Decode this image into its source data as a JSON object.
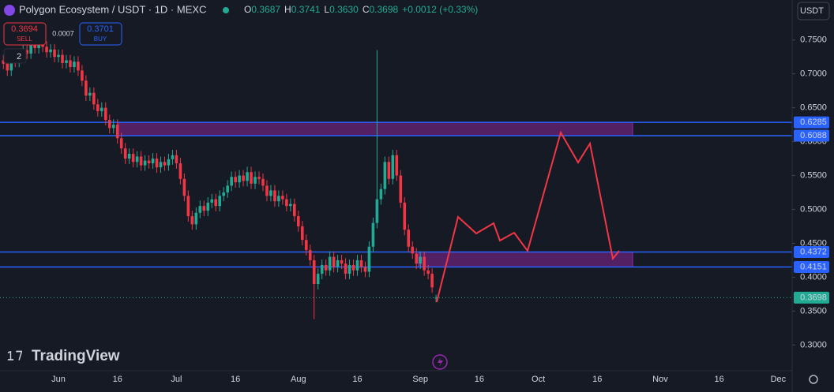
{
  "chart_data": {
    "type": "candlestick",
    "title": "Polygon Ecosystem / USDT · 1D · MEXC",
    "legend": {
      "o_label": "O",
      "o": "0.3687",
      "h_label": "H",
      "h": "0.3741",
      "l_label": "L",
      "l": "0.3630",
      "c_label": "C",
      "c": "0.3698",
      "change": "+0.0012 (+0.33%)"
    },
    "trade_panel": {
      "sell_price": "0.3694",
      "sell": "SELL",
      "spread": "0.0007",
      "buy_price": "0.3701",
      "buy": "BUY",
      "collapse_count": "2"
    },
    "currency": "USDT",
    "brand": "TradingView",
    "up_color": "#22ab94",
    "down_color": "#f23645",
    "ylim": [
      0.262,
      0.809
    ],
    "yticks": [
      {
        "value": 0.75,
        "label": "0.7500"
      },
      {
        "value": 0.7,
        "label": "0.7000"
      },
      {
        "value": 0.65,
        "label": "0.6500"
      },
      {
        "value": 0.6,
        "label": "0.6000"
      },
      {
        "value": 0.55,
        "label": "0.5500"
      },
      {
        "value": 0.5,
        "label": "0.5000"
      },
      {
        "value": 0.45,
        "label": "0.4500"
      },
      {
        "value": 0.4,
        "label": "0.4000"
      },
      {
        "value": 0.35,
        "label": "0.3500"
      },
      {
        "value": 0.3,
        "label": "0.3000"
      }
    ],
    "hlines": [
      0.6285,
      0.6088,
      0.4372,
      0.4151
    ],
    "categories": [
      null,
      null,
      null,
      null,
      null,
      null,
      null,
      null,
      null,
      null,
      null,
      null,
      null,
      null,
      "Jun",
      null,
      null,
      null,
      null,
      null,
      null,
      null,
      null,
      null,
      null,
      null,
      null,
      null,
      null,
      "16",
      null,
      null,
      null,
      null,
      null,
      null,
      null,
      null,
      null,
      null,
      null,
      null,
      null,
      null,
      "Jul",
      null,
      null,
      null,
      null,
      null,
      null,
      null,
      null,
      null,
      null,
      null,
      null,
      null,
      null,
      "16",
      null,
      null,
      null,
      null,
      null,
      null,
      null,
      null,
      null,
      null,
      null,
      null,
      null,
      null,
      null,
      "Aug",
      null,
      null,
      null,
      null,
      null,
      null,
      null,
      null,
      null,
      null,
      null,
      null,
      null,
      null,
      "16",
      null,
      null,
      null,
      null,
      null,
      null,
      null,
      null,
      null,
      null,
      null,
      null,
      null,
      null,
      null,
      "Sep",
      null,
      null,
      null,
      null,
      null,
      null,
      null,
      null,
      null,
      null,
      null,
      null,
      null,
      null,
      "16",
      null,
      null,
      null,
      null,
      null,
      null,
      null,
      null,
      null,
      null,
      null,
      null,
      null,
      null,
      "Oct",
      null,
      null,
      null,
      null,
      null,
      null,
      null,
      null,
      null,
      null,
      null,
      null,
      null,
      null,
      "16",
      null,
      null,
      null,
      null,
      null,
      null,
      null,
      null,
      null,
      null,
      null,
      null,
      null,
      null,
      null,
      "Nov",
      null,
      null,
      null,
      null,
      null,
      null,
      null,
      null,
      null,
      null,
      null,
      null,
      null,
      null,
      "16",
      null,
      null,
      null,
      null,
      null,
      null,
      null,
      null,
      null,
      null,
      null,
      null,
      null,
      null,
      "Dec",
      null,
      null,
      null
    ],
    "open": [
      0.72,
      0.715,
      0.705,
      0.722,
      0.718,
      0.728,
      0.735,
      0.73,
      0.742,
      0.738,
      0.745,
      0.74,
      0.732,
      0.736,
      0.725,
      0.728,
      0.716,
      0.72,
      0.71,
      0.718,
      0.705,
      0.69,
      0.668,
      0.672,
      0.655,
      0.645,
      0.65,
      0.632,
      0.62,
      0.625,
      0.605,
      0.59,
      0.575,
      0.582,
      0.57,
      0.578,
      0.565,
      0.572,
      0.568,
      0.575,
      0.562,
      0.57,
      0.565,
      0.574,
      0.58,
      0.568,
      0.545,
      0.52,
      0.49,
      0.478,
      0.495,
      0.505,
      0.498,
      0.51,
      0.515,
      0.505,
      0.52,
      0.525,
      0.535,
      0.548,
      0.54,
      0.55,
      0.542,
      0.555,
      0.538,
      0.548,
      0.545,
      0.535,
      0.52,
      0.528,
      0.512,
      0.52,
      0.515,
      0.505,
      0.508,
      0.49,
      0.475,
      0.455,
      0.44,
      0.425,
      0.39,
      0.405,
      0.418,
      0.41,
      0.43,
      0.415,
      0.425,
      0.42,
      0.405,
      0.418,
      0.41,
      0.425,
      0.415,
      0.408,
      0.445,
      0.48,
      0.515,
      0.53,
      0.57,
      0.545,
      0.58,
      0.55,
      0.51,
      0.47,
      0.445,
      0.435,
      0.42,
      0.43,
      0.41,
      0.405,
      0.3687,
      null,
      null,
      null,
      null,
      null,
      null,
      null,
      null,
      null,
      null,
      null,
      null,
      null,
      null,
      null,
      null,
      null,
      null,
      null,
      null,
      null,
      null,
      null,
      null,
      null,
      null,
      null,
      null,
      null,
      null,
      null,
      null,
      null,
      null,
      null,
      null,
      null,
      null,
      null,
      null,
      null,
      null,
      null,
      null,
      null,
      null,
      null,
      null,
      null,
      null,
      null,
      null,
      null,
      null,
      null,
      null,
      null,
      null,
      null,
      null,
      null,
      null,
      null,
      null,
      null,
      null,
      null,
      null,
      null,
      null,
      null,
      null,
      null,
      null,
      null,
      null,
      null,
      null,
      null,
      null,
      null,
      null,
      null,
      null,
      null,
      null,
      null,
      null,
      null,
      null
    ],
    "high": [
      0.728,
      0.723,
      0.73,
      0.73,
      0.736,
      0.743,
      0.743,
      0.75,
      0.75,
      0.753,
      0.753,
      0.748,
      0.744,
      0.744,
      0.736,
      0.736,
      0.728,
      0.728,
      0.726,
      0.726,
      0.713,
      0.698,
      0.68,
      0.68,
      0.663,
      0.658,
      0.658,
      0.64,
      0.633,
      0.633,
      0.613,
      0.598,
      0.59,
      0.59,
      0.586,
      0.586,
      0.58,
      0.58,
      0.583,
      0.583,
      0.578,
      0.578,
      0.582,
      0.588,
      0.588,
      0.576,
      0.553,
      0.528,
      0.498,
      0.503,
      0.513,
      0.513,
      0.518,
      0.523,
      0.523,
      0.528,
      0.533,
      0.543,
      0.556,
      0.556,
      0.558,
      0.558,
      0.563,
      0.563,
      0.556,
      0.556,
      0.553,
      0.543,
      0.536,
      0.536,
      0.528,
      0.528,
      0.523,
      0.516,
      0.516,
      0.498,
      0.483,
      0.463,
      0.448,
      0.433,
      0.413,
      0.426,
      0.426,
      0.438,
      0.438,
      0.433,
      0.433,
      0.428,
      0.426,
      0.426,
      0.433,
      0.433,
      0.423,
      0.453,
      0.488,
      0.735,
      0.538,
      0.578,
      0.578,
      0.588,
      0.588,
      0.558,
      0.518,
      0.478,
      0.453,
      0.443,
      0.438,
      0.438,
      0.418,
      0.413,
      0.3741,
      null,
      null,
      null,
      null,
      null,
      null,
      null,
      null,
      null,
      null,
      null,
      null,
      null,
      null,
      null,
      null,
      null,
      null,
      null,
      null,
      null,
      null,
      null,
      null,
      null,
      null,
      null,
      null,
      null,
      null,
      null,
      null,
      null,
      null,
      null,
      null,
      null,
      null,
      null,
      null,
      null,
      null,
      null,
      null,
      null,
      null,
      null,
      null,
      null,
      null,
      null,
      null,
      null,
      null,
      null,
      null,
      null,
      null,
      null,
      null,
      null,
      null,
      null,
      null,
      null,
      null,
      null,
      null,
      null,
      null,
      null,
      null,
      null,
      null,
      null,
      null,
      null,
      null,
      null,
      null,
      null,
      null,
      null,
      null,
      null,
      null,
      null,
      null,
      null,
      null
    ],
    "low": [
      0.707,
      0.697,
      0.697,
      0.71,
      0.71,
      0.72,
      0.722,
      0.722,
      0.73,
      0.73,
      0.732,
      0.724,
      0.724,
      0.717,
      0.717,
      0.708,
      0.708,
      0.702,
      0.702,
      0.697,
      0.682,
      0.66,
      0.66,
      0.647,
      0.637,
      0.637,
      0.624,
      0.612,
      0.612,
      0.597,
      0.582,
      0.567,
      0.567,
      0.562,
      0.562,
      0.557,
      0.557,
      0.56,
      0.56,
      0.554,
      0.554,
      0.557,
      0.557,
      0.566,
      0.56,
      0.537,
      0.512,
      0.482,
      0.47,
      0.47,
      0.487,
      0.49,
      0.49,
      0.502,
      0.497,
      0.497,
      0.512,
      0.517,
      0.527,
      0.532,
      0.532,
      0.534,
      0.534,
      0.53,
      0.53,
      0.537,
      0.527,
      0.512,
      0.512,
      0.504,
      0.504,
      0.507,
      0.497,
      0.497,
      0.482,
      0.467,
      0.447,
      0.432,
      0.417,
      0.338,
      0.382,
      0.397,
      0.402,
      0.402,
      0.407,
      0.407,
      0.412,
      0.397,
      0.397,
      0.402,
      0.402,
      0.407,
      0.4,
      0.4,
      0.437,
      0.472,
      0.507,
      0.522,
      0.537,
      0.537,
      0.542,
      0.502,
      0.462,
      0.437,
      0.427,
      0.412,
      0.412,
      0.402,
      0.397,
      0.377,
      0.363,
      null,
      null,
      null,
      null,
      null,
      null,
      null,
      null,
      null,
      null,
      null,
      null,
      null,
      null,
      null,
      null,
      null,
      null,
      null,
      null,
      null,
      null,
      null,
      null,
      null,
      null,
      null,
      null,
      null,
      null,
      null,
      null,
      null,
      null,
      null,
      null,
      null,
      null,
      null,
      null,
      null,
      null,
      null,
      null,
      null,
      null,
      null,
      null,
      null,
      null,
      null,
      null,
      null,
      null,
      null,
      null,
      null,
      null,
      null,
      null,
      null,
      null,
      null,
      null,
      null,
      null,
      null,
      null,
      null,
      null,
      null,
      null,
      null,
      null,
      null,
      null,
      null,
      null,
      null,
      null,
      null,
      null,
      null,
      null,
      null,
      null,
      null,
      null,
      null,
      null
    ],
    "close": [
      0.715,
      0.705,
      0.722,
      0.718,
      0.728,
      0.735,
      0.73,
      0.742,
      0.738,
      0.745,
      0.74,
      0.732,
      0.736,
      0.725,
      0.728,
      0.716,
      0.72,
      0.71,
      0.718,
      0.705,
      0.69,
      0.668,
      0.672,
      0.655,
      0.645,
      0.65,
      0.632,
      0.62,
      0.625,
      0.605,
      0.59,
      0.575,
      0.582,
      0.57,
      0.578,
      0.565,
      0.572,
      0.568,
      0.575,
      0.562,
      0.57,
      0.565,
      0.574,
      0.58,
      0.568,
      0.545,
      0.52,
      0.49,
      0.478,
      0.495,
      0.505,
      0.498,
      0.51,
      0.515,
      0.505,
      0.52,
      0.525,
      0.535,
      0.548,
      0.54,
      0.55,
      0.542,
      0.555,
      0.538,
      0.548,
      0.545,
      0.535,
      0.52,
      0.528,
      0.512,
      0.52,
      0.515,
      0.505,
      0.508,
      0.49,
      0.475,
      0.455,
      0.44,
      0.425,
      0.39,
      0.405,
      0.418,
      0.41,
      0.43,
      0.415,
      0.425,
      0.42,
      0.405,
      0.418,
      0.41,
      0.425,
      0.415,
      0.408,
      0.445,
      0.48,
      0.515,
      0.53,
      0.57,
      0.545,
      0.58,
      0.55,
      0.51,
      0.47,
      0.445,
      0.435,
      0.42,
      0.43,
      0.41,
      0.405,
      0.385,
      0.3698,
      null,
      null,
      null,
      null,
      null,
      null,
      null,
      null,
      null,
      null,
      null,
      null,
      null,
      null,
      null,
      null,
      null,
      null,
      null,
      null,
      null,
      null,
      null,
      null,
      null,
      null,
      null,
      null,
      null,
      null,
      null,
      null,
      null,
      null,
      null,
      null,
      null,
      null,
      null,
      null,
      null,
      null,
      null,
      null,
      null,
      null,
      null,
      null,
      null,
      null,
      null,
      null,
      null,
      null,
      null,
      null,
      null,
      null,
      null,
      null,
      null,
      null,
      null,
      null,
      null,
      null,
      null,
      null,
      null,
      null,
      null,
      null,
      null,
      null,
      null,
      null,
      null,
      null,
      null,
      null,
      null,
      null,
      null,
      null,
      null,
      null,
      null,
      null,
      null,
      null
    ]
  }
}
